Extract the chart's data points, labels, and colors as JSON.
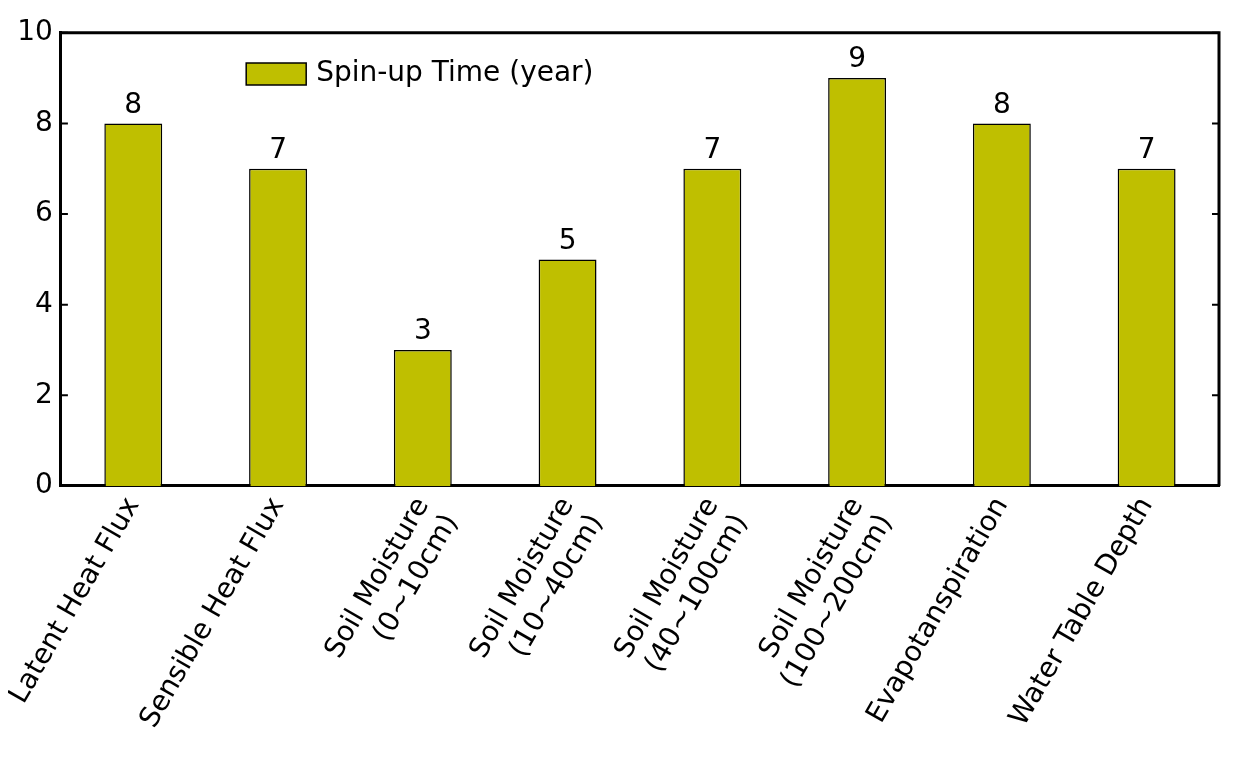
{
  "chart_data": {
    "type": "bar",
    "categories": [
      "Latent Heat Flux",
      "Sensible Heat Flux",
      "Soil Moisture\n(0~10cm)",
      "Soil Moisture\n(10~40cm)",
      "Soil Moisture\n(40~100cm)",
      "Soil Moisture\n(100~200cm)",
      "Evapotanspiration",
      "Water Table Depth"
    ],
    "series": [
      {
        "name": "Spin-up Time (year)",
        "color": "#bfbf00",
        "values": [
          8,
          7,
          3,
          5,
          7,
          9,
          8,
          7
        ]
      }
    ],
    "ylim": [
      0,
      10
    ],
    "yticks": [
      0,
      2,
      4,
      6,
      8,
      10
    ],
    "grid": false,
    "legend": "top left",
    "data_labels": true
  }
}
